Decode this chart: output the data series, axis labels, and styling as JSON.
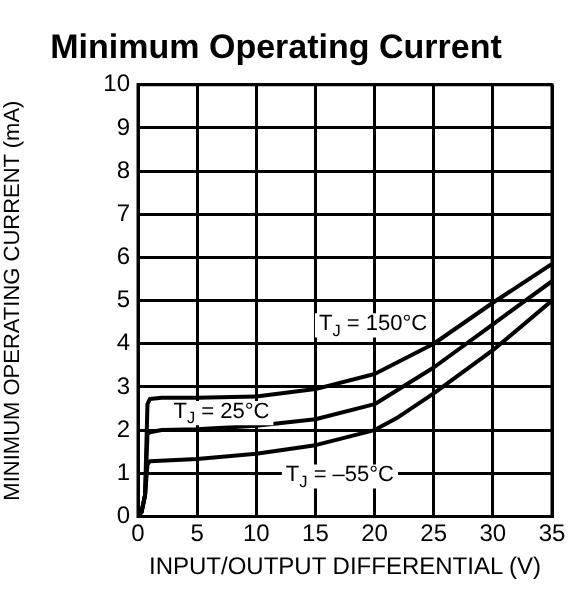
{
  "chart_data": {
    "type": "line",
    "title": "Minimum Operating Current",
    "xlabel": "INPUT/OUTPUT DIFFERENTIAL (V)",
    "ylabel": "MINIMUM OPERATING CURRENT (mA)",
    "series": [
      {
        "name": "T$_{J}$ = 150°C",
        "color": "#000000",
        "x": [
          0,
          0.3,
          0.6,
          0.8,
          1,
          2,
          5,
          10,
          15,
          20,
          25,
          30,
          35
        ],
        "values": [
          0,
          0.1,
          0.5,
          2.6,
          2.72,
          2.75,
          2.75,
          2.78,
          2.95,
          3.3,
          4.0,
          4.95,
          5.85
        ]
      },
      {
        "name": "T$_{J}$ = 25°C",
        "color": "#000000",
        "x": [
          0,
          0.3,
          0.6,
          0.8,
          1,
          2,
          5,
          10,
          15,
          20,
          25,
          30,
          35
        ],
        "values": [
          0,
          0.1,
          0.5,
          1.9,
          1.95,
          2.0,
          2.02,
          2.1,
          2.25,
          2.6,
          3.45,
          4.45,
          5.45
        ]
      },
      {
        "name": "T$_{J}$ = –55°C",
        "color": "#000000",
        "x": [
          0,
          0.3,
          0.6,
          0.8,
          1,
          5,
          10,
          15,
          20,
          22,
          25,
          30,
          35
        ],
        "values": [
          0,
          0.1,
          0.5,
          1.2,
          1.28,
          1.33,
          1.45,
          1.65,
          2.0,
          2.3,
          2.85,
          3.85,
          5.0
        ]
      }
    ],
    "xlim": [
      0,
      35
    ],
    "xticks": [
      0,
      5,
      10,
      15,
      20,
      25,
      30,
      35
    ],
    "ylim": [
      0,
      10
    ],
    "yticks": [
      0,
      1,
      2,
      3,
      4,
      5,
      6,
      7,
      8,
      9,
      10
    ],
    "grid": true,
    "legend": false,
    "marker": "none",
    "line_style": "solid"
  }
}
